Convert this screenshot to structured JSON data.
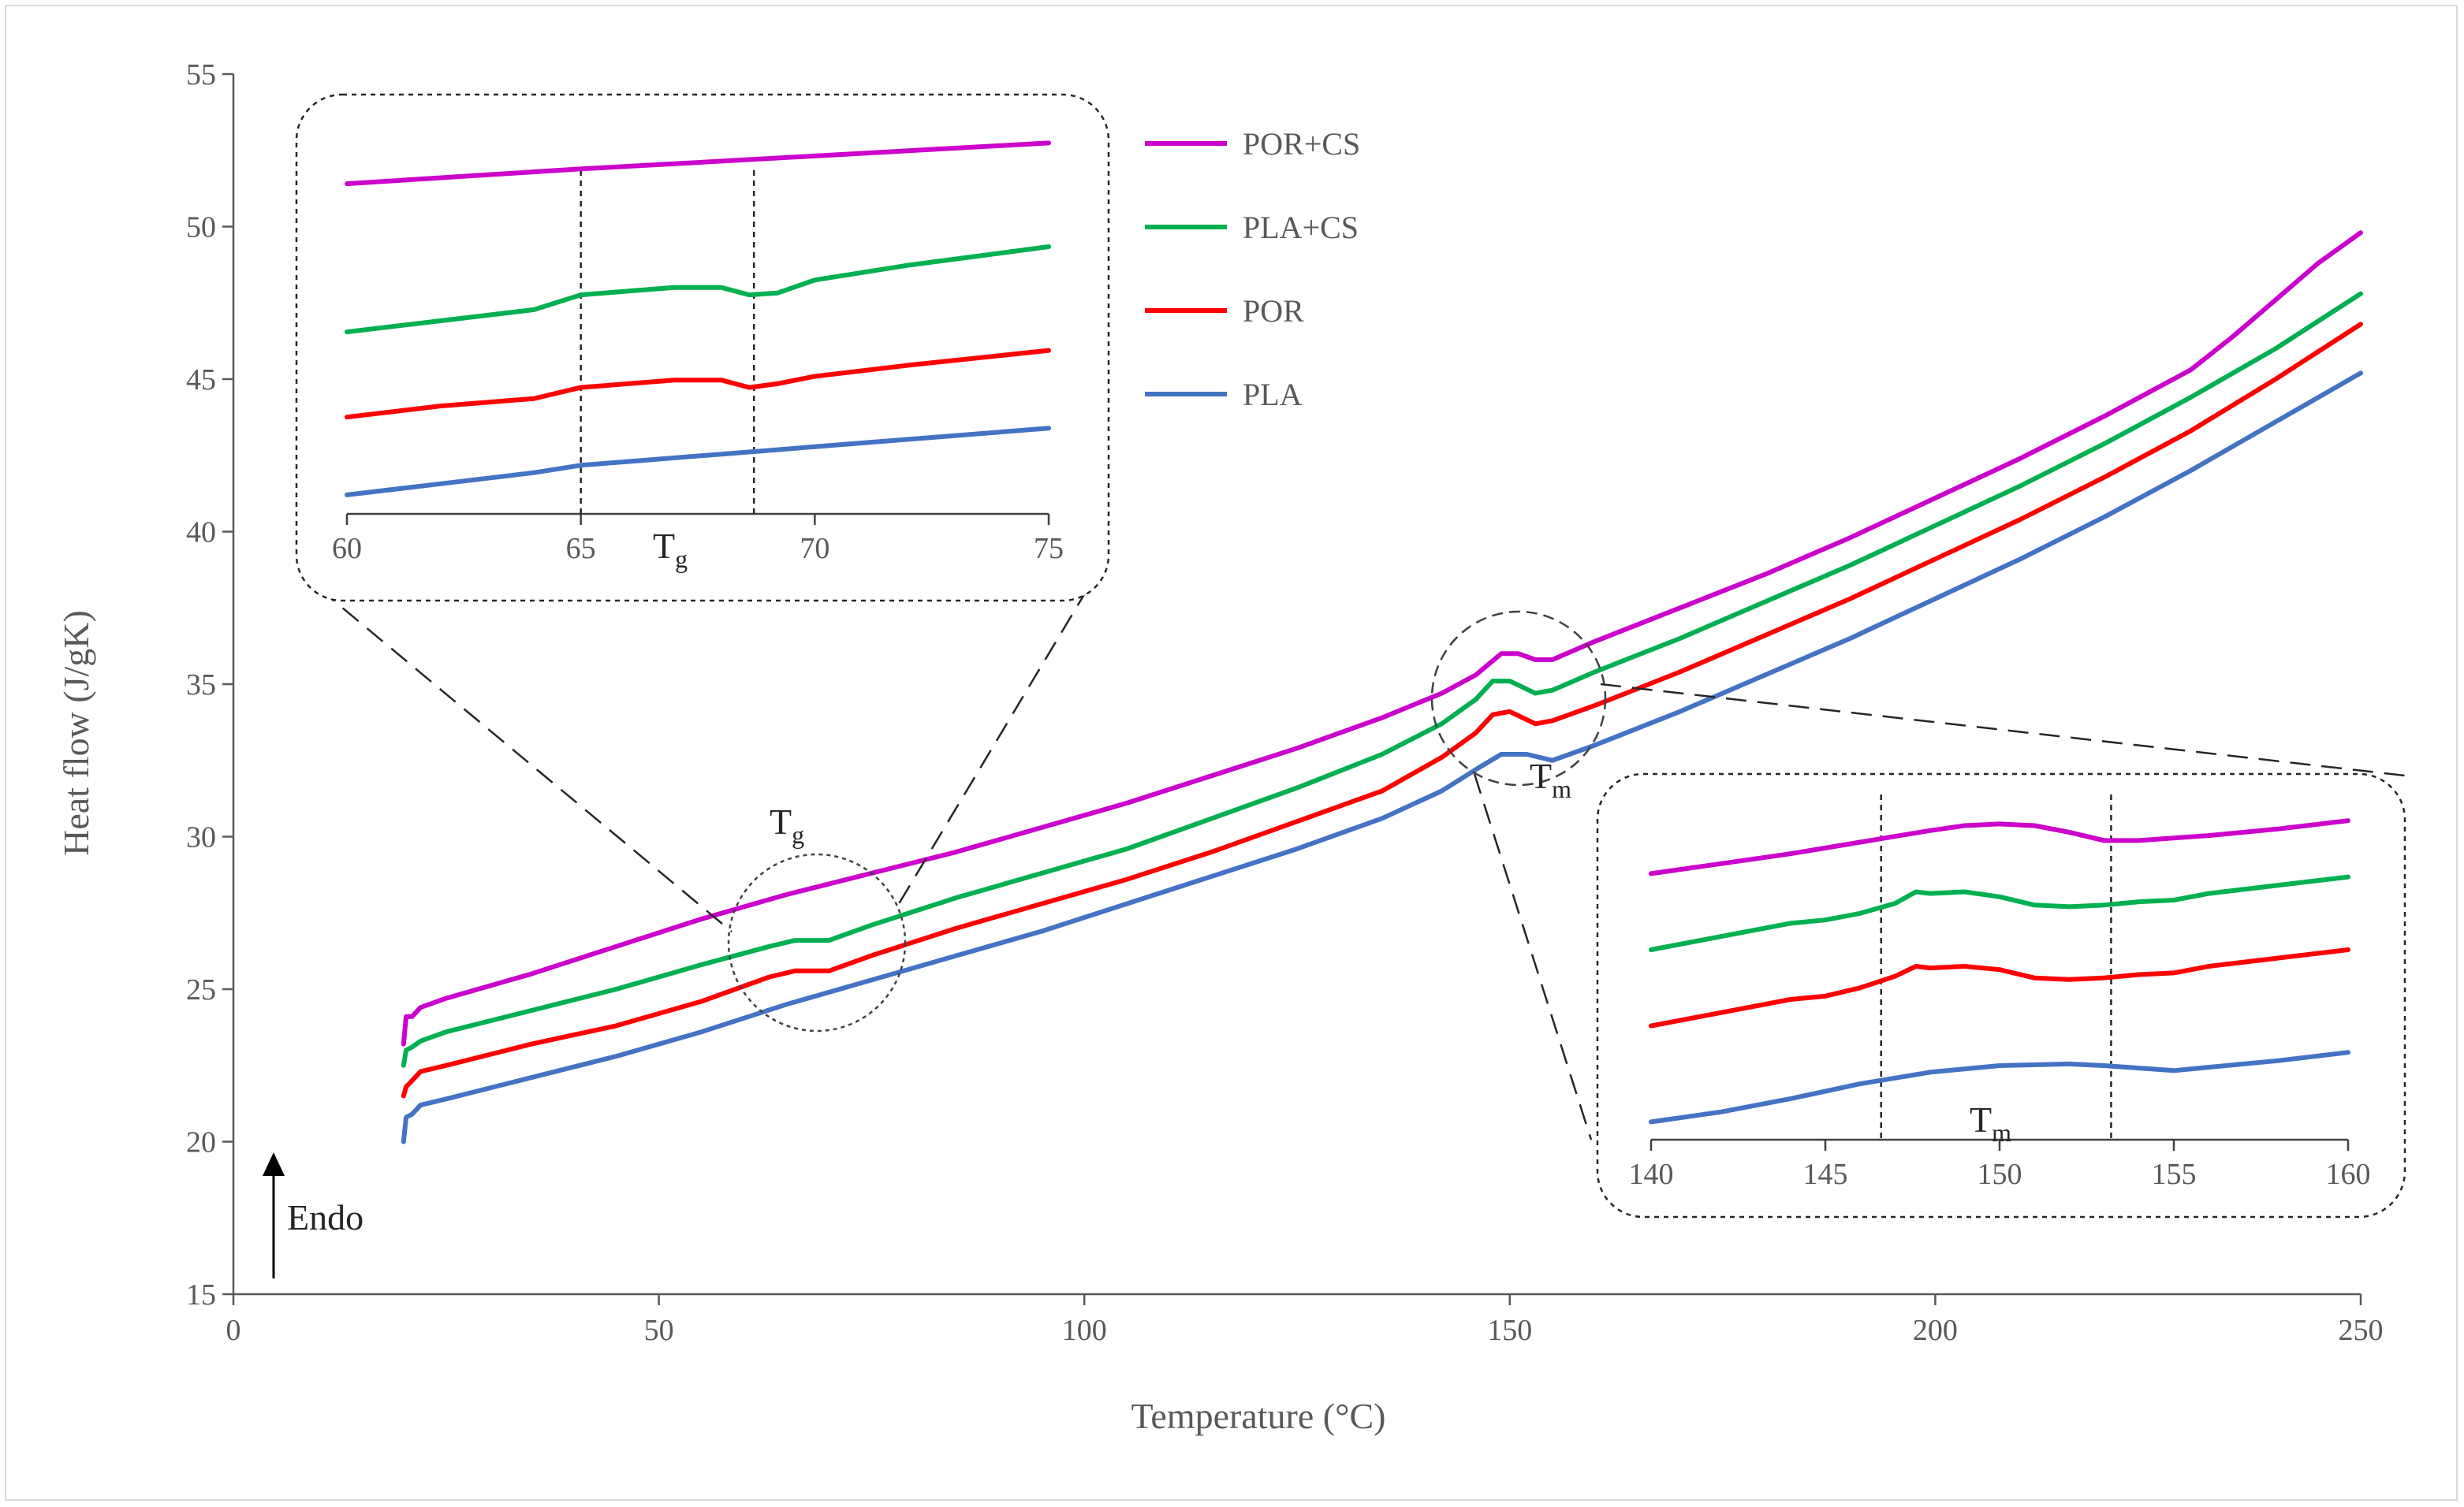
{
  "chart_data": [
    {
      "type": "line",
      "panel": "main",
      "xlabel": "Temperature (°C)",
      "ylabel": "Heat flow (J/gK)",
      "xlim": [
        0,
        250
      ],
      "ylim": [
        15,
        55
      ],
      "xticks": [
        0,
        50,
        100,
        150,
        200,
        250
      ],
      "yticks": [
        15,
        20,
        25,
        30,
        35,
        40,
        45,
        50,
        55
      ],
      "grid": false,
      "legend_position": "top-right",
      "annotations": {
        "endo": "Endo",
        "tg_base": "T",
        "tg_sub": "g",
        "tm_base": "T",
        "tm_sub": "m"
      },
      "series": [
        {
          "name": "POR+CS",
          "color": "#CC00CC",
          "x": [
            20,
            20.3,
            21,
            22,
            25,
            35,
            45,
            55,
            65,
            75,
            85,
            95,
            105,
            115,
            125,
            135,
            142,
            146,
            149,
            151,
            153,
            155,
            160,
            170,
            180,
            190,
            200,
            210,
            220,
            230,
            235,
            240,
            245,
            250
          ],
          "y": [
            23.2,
            24.1,
            24.1,
            24.4,
            24.7,
            25.5,
            26.4,
            27.3,
            28.1,
            28.8,
            29.5,
            30.3,
            31.1,
            32.0,
            32.9,
            33.9,
            34.7,
            35.3,
            36.0,
            36.0,
            35.8,
            35.8,
            36.4,
            37.5,
            38.6,
            39.8,
            41.1,
            42.4,
            43.8,
            45.3,
            46.4,
            47.6,
            48.8,
            49.8
          ]
        },
        {
          "name": "PLA+CS",
          "color": "#00B050",
          "x": [
            20,
            20.3,
            21,
            22,
            25,
            35,
            45,
            55,
            63,
            66,
            68,
            70,
            75,
            85,
            95,
            105,
            115,
            125,
            135,
            142,
            146,
            148,
            150,
            153,
            155,
            160,
            170,
            180,
            190,
            200,
            210,
            220,
            230,
            240,
            250
          ],
          "y": [
            22.5,
            23.0,
            23.1,
            23.3,
            23.6,
            24.3,
            25.0,
            25.8,
            26.4,
            26.6,
            26.6,
            26.6,
            27.1,
            28.0,
            28.8,
            29.6,
            30.6,
            31.6,
            32.7,
            33.7,
            34.5,
            35.1,
            35.1,
            34.7,
            34.8,
            35.4,
            36.5,
            37.7,
            38.9,
            40.2,
            41.5,
            42.9,
            44.4,
            46.0,
            47.8
          ]
        },
        {
          "name": "POR",
          "color": "#FF0000",
          "x": [
            20,
            20.3,
            21,
            22,
            25,
            35,
            45,
            55,
            63,
            66,
            68,
            70,
            75,
            85,
            95,
            105,
            115,
            125,
            135,
            142,
            146,
            148,
            150,
            153,
            155,
            160,
            170,
            180,
            190,
            200,
            210,
            220,
            230,
            240,
            250
          ],
          "y": [
            21.5,
            21.8,
            22.0,
            22.3,
            22.5,
            23.2,
            23.8,
            24.6,
            25.4,
            25.6,
            25.6,
            25.6,
            26.1,
            27.0,
            27.8,
            28.6,
            29.5,
            30.5,
            31.5,
            32.6,
            33.4,
            34.0,
            34.1,
            33.7,
            33.8,
            34.3,
            35.4,
            36.6,
            37.8,
            39.1,
            40.4,
            41.8,
            43.3,
            45.0,
            46.8
          ]
        },
        {
          "name": "PLA",
          "color": "#4472C4",
          "x": [
            20,
            20.3,
            21,
            22,
            25,
            35,
            45,
            55,
            65,
            75,
            85,
            95,
            105,
            115,
            125,
            135,
            142,
            146,
            149,
            152,
            155,
            160,
            170,
            180,
            190,
            200,
            210,
            220,
            230,
            240,
            250
          ],
          "y": [
            20.0,
            20.8,
            20.9,
            21.2,
            21.4,
            22.1,
            22.8,
            23.6,
            24.5,
            25.3,
            26.1,
            26.9,
            27.8,
            28.7,
            29.6,
            30.6,
            31.5,
            32.2,
            32.7,
            32.7,
            32.5,
            33.0,
            34.1,
            35.3,
            36.5,
            37.8,
            39.1,
            40.5,
            42.0,
            43.6,
            45.2
          ]
        }
      ]
    },
    {
      "type": "line",
      "panel": "inset-glass-transition",
      "xlim": [
        60,
        75
      ],
      "xticks": [
        60,
        65,
        70,
        75
      ],
      "ylim": [
        0,
        100
      ],
      "label_base": "T",
      "label_sub": "g",
      "marker_lines_x": [
        65,
        68.7
      ],
      "series": [
        {
          "name": "POR+CS",
          "color": "#CC00CC",
          "x": [
            60,
            65,
            70,
            75
          ],
          "y": [
            87,
            91,
            94.5,
            98
          ]
        },
        {
          "name": "PLA+CS",
          "color": "#00B050",
          "x": [
            60,
            62,
            64,
            65,
            66,
            67,
            68,
            68.6,
            69.2,
            70,
            72,
            75
          ],
          "y": [
            47,
            50,
            53,
            57,
            58,
            59,
            59,
            57,
            57.5,
            61,
            65,
            70
          ]
        },
        {
          "name": "POR",
          "color": "#FF0000",
          "x": [
            60,
            62,
            64,
            65,
            66,
            67,
            68,
            68.6,
            69.2,
            70,
            72,
            75
          ],
          "y": [
            24,
            27,
            29,
            32,
            33,
            34,
            34,
            32,
            33,
            35,
            38,
            42
          ]
        },
        {
          "name": "PLA",
          "color": "#4472C4",
          "x": [
            60,
            62,
            64,
            65,
            66,
            68,
            70,
            72,
            75
          ],
          "y": [
            3,
            6,
            9,
            11,
            12,
            14,
            16,
            18,
            21
          ]
        }
      ]
    },
    {
      "type": "line",
      "panel": "inset-melting",
      "xlim": [
        140,
        160
      ],
      "xticks": [
        140,
        145,
        150,
        155,
        160
      ],
      "ylim": [
        0,
        100
      ],
      "label_base": "T",
      "label_sub": "m",
      "marker_lines_x": [
        146.6,
        153.2
      ],
      "series": [
        {
          "name": "POR+CS",
          "color": "#CC00CC",
          "x": [
            140,
            142,
            144,
            146,
            148,
            149,
            150,
            151,
            152,
            153,
            154,
            156,
            158,
            160
          ],
          "y": [
            78,
            81,
            84,
            87.5,
            91,
            92.5,
            93,
            92.5,
            90.5,
            88,
            88,
            89.5,
            91.5,
            94
          ]
        },
        {
          "name": "PLA+CS",
          "color": "#00B050",
          "x": [
            140,
            142,
            144,
            145,
            146,
            147,
            147.6,
            148,
            149,
            150,
            151,
            152,
            153,
            154,
            155,
            156,
            158,
            160
          ],
          "y": [
            55,
            59,
            63,
            64,
            66,
            69,
            72.5,
            72,
            72.5,
            71,
            68.5,
            68,
            68.5,
            69.5,
            70,
            72,
            74.5,
            77
          ]
        },
        {
          "name": "POR",
          "color": "#FF0000",
          "x": [
            140,
            142,
            144,
            145,
            146,
            147,
            147.6,
            148,
            149,
            150,
            151,
            152,
            153,
            154,
            155,
            156,
            158,
            160
          ],
          "y": [
            32,
            36,
            40,
            41,
            43.5,
            47,
            50,
            49.5,
            50,
            49,
            46.5,
            46,
            46.5,
            47.5,
            48,
            50,
            52.5,
            55
          ]
        },
        {
          "name": "PLA",
          "color": "#4472C4",
          "x": [
            140,
            142,
            144,
            146,
            148,
            150,
            152,
            153,
            155,
            158,
            160
          ],
          "y": [
            3,
            6,
            10,
            14.5,
            18,
            20,
            20.5,
            20,
            18.5,
            21.5,
            24
          ]
        }
      ]
    }
  ]
}
